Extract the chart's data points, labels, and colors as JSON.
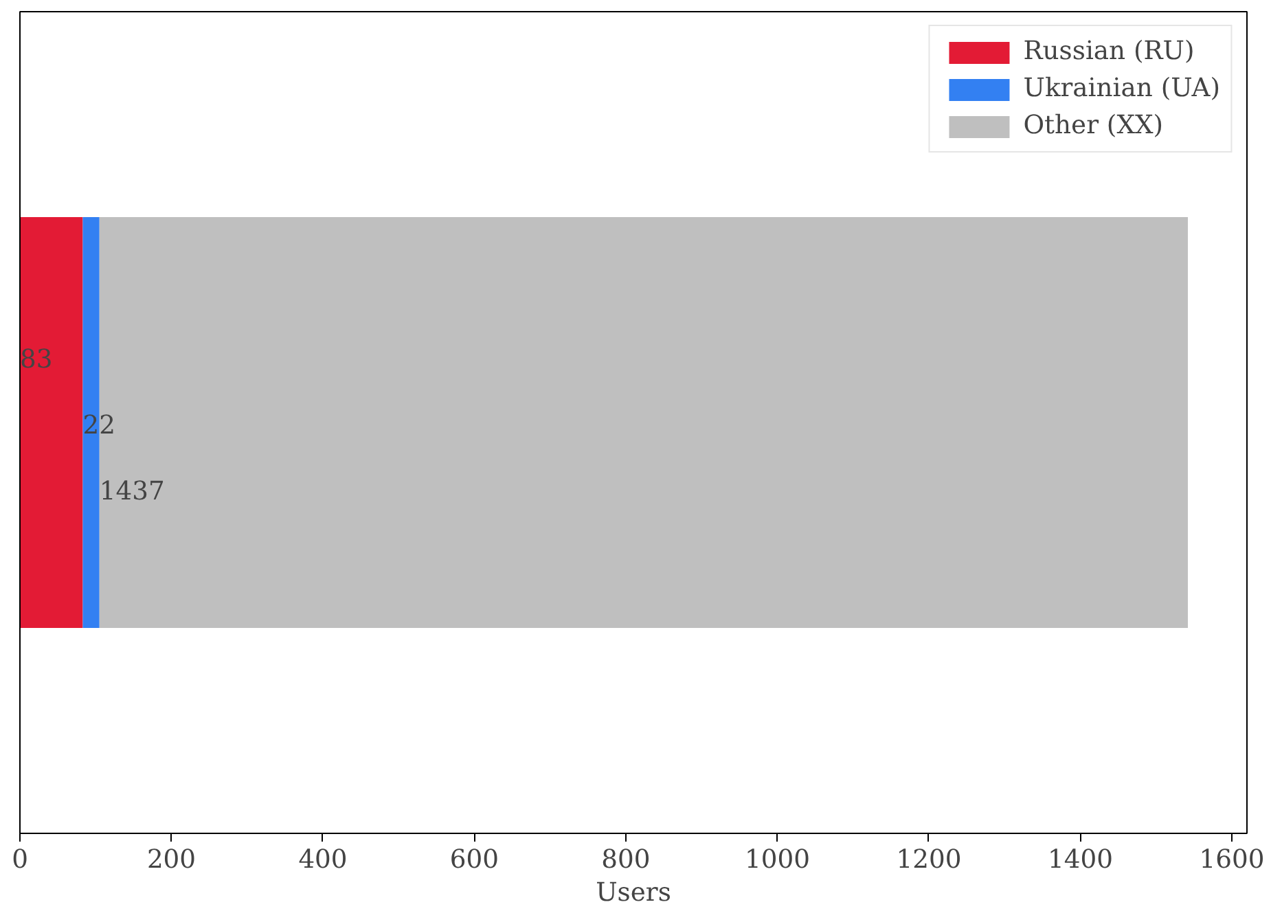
{
  "chart_data": {
    "type": "bar",
    "orientation": "horizontal",
    "stacked": true,
    "categories": [
      null
    ],
    "series": [
      {
        "name": "Russian (RU)",
        "color": "#e31b35",
        "values": [
          83
        ]
      },
      {
        "name": "Ukrainian (UA)",
        "color": "#3380f2",
        "values": [
          22
        ]
      },
      {
        "name": "Other (XX)",
        "color": "#bfbfbf",
        "values": [
          1437
        ]
      }
    ],
    "xlabel": "Users",
    "xlim": [
      0,
      1620
    ],
    "xticks": [
      0,
      200,
      400,
      600,
      800,
      1000,
      1200,
      1400,
      1600
    ],
    "data_labels": true,
    "legend": "top right",
    "grid": false,
    "tick_labels": "x"
  }
}
